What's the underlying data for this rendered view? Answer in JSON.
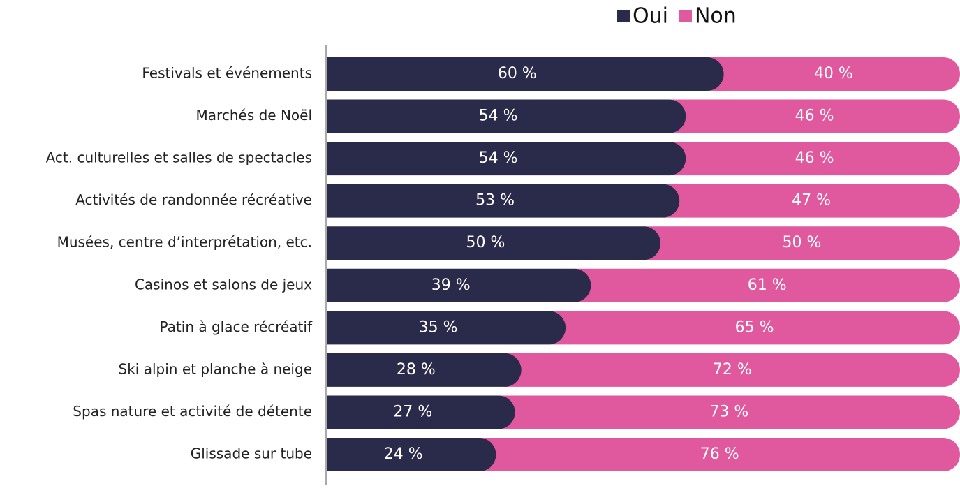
{
  "chart_data": {
    "type": "stacked-bar-horizontal",
    "categories": [
      "Festivals et événements",
      "Marchés de Noël",
      "Act. culturelles et salles de spectacles",
      "Activités de randonnée récréative",
      "Musées, centre d’interprétation, etc.",
      "Casinos et salons de jeux",
      "Patin à glace récréatif",
      "Ski alpin et planche à neige",
      "Spas nature et activité de détente",
      "Glissade sur tube"
    ],
    "series": [
      {
        "name": "Oui",
        "color": "#2a2a4a",
        "values": [
          60,
          54,
          54,
          53,
          50,
          39,
          35,
          28,
          27,
          24
        ],
        "value_labels": [
          "60 %",
          "54 %",
          "54 %",
          "53 %",
          "50 %",
          "39 %",
          "35 %",
          "28 %",
          "27 %",
          "24 %"
        ]
      },
      {
        "name": "Non",
        "color": "#e0589e",
        "values": [
          40,
          46,
          46,
          47,
          50,
          61,
          65,
          72,
          73,
          76
        ],
        "value_labels": [
          "40 %",
          "46 %",
          "46 %",
          "47 %",
          "50 %",
          "61 %",
          "65 %",
          "72 %",
          "73 %",
          "76 %"
        ]
      }
    ],
    "legend": "top-right"
  }
}
